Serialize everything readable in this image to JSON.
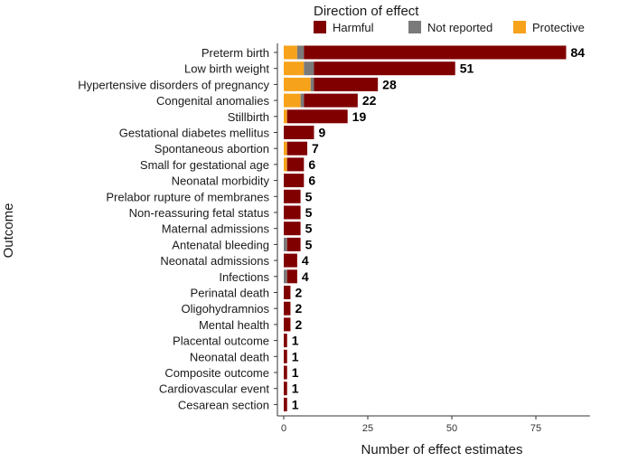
{
  "chart_data": {
    "type": "bar",
    "orientation": "horizontal",
    "stacked": true,
    "xlabel": "Number of effect estimates",
    "ylabel": "Outcome",
    "xlim": [
      0,
      90
    ],
    "xticks": [
      0,
      25,
      50,
      75
    ],
    "grid": false,
    "legend": {
      "title": "Direction of effect",
      "placement": "top",
      "entries": [
        "Harmful",
        "Not reported",
        "Protective"
      ]
    },
    "categories": [
      "Preterm birth",
      "Low birth weight",
      "Hypertensive disorders of pregnancy",
      "Congenital anomalies",
      "Stillbirth",
      "Gestational diabetes mellitus",
      "Spontaneous abortion",
      "Small for gestational age",
      "Neonatal morbidity",
      "Prelabor rupture of membranes",
      "Non-reassuring fetal status",
      "Maternal admissions",
      "Antenatal bleeding",
      "Neonatal admissions",
      "Infections",
      "Perinatal death",
      "Oligohydramnios",
      "Mental health",
      "Placental outcome",
      "Neonatal death",
      "Composite outcome",
      "Cardiovascular event",
      "Cesarean section"
    ],
    "series": [
      {
        "name": "Protective",
        "color": "#F7A21B",
        "values": [
          4,
          6,
          8,
          5,
          1,
          0,
          1,
          1,
          0,
          0,
          0,
          0,
          0,
          0,
          0,
          0,
          0,
          0,
          0,
          0,
          0,
          0,
          0
        ]
      },
      {
        "name": "Not reported",
        "color": "#7A7A7A",
        "values": [
          2,
          3,
          1,
          1,
          0,
          0,
          0,
          0,
          0,
          0,
          0,
          0,
          1,
          0,
          1,
          0,
          0,
          0,
          0,
          0,
          0,
          0,
          0
        ]
      },
      {
        "name": "Harmful",
        "color": "#800000",
        "values": [
          78,
          42,
          19,
          16,
          18,
          9,
          6,
          5,
          6,
          5,
          5,
          5,
          4,
          4,
          3,
          2,
          2,
          2,
          1,
          1,
          1,
          1,
          1
        ]
      }
    ],
    "totals": [
      84,
      51,
      28,
      22,
      19,
      9,
      7,
      6,
      6,
      5,
      5,
      5,
      5,
      4,
      4,
      2,
      2,
      2,
      1,
      1,
      1,
      1,
      1
    ]
  }
}
